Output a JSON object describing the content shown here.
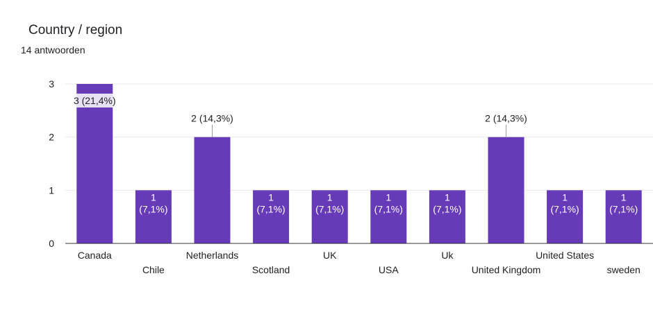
{
  "header": {
    "title": "Country / region",
    "response_count": "14 antwoorden"
  },
  "chart_data": {
    "type": "bar",
    "categories": [
      "Canada",
      "Chile",
      "Netherlands",
      "Scotland",
      "UK",
      "USA",
      "Uk",
      "United Kingdom",
      "United States",
      "sweden"
    ],
    "values": [
      3,
      1,
      2,
      1,
      1,
      1,
      1,
      2,
      1,
      1
    ],
    "data_labels": [
      "3 (21,4%)",
      "1 (7,1%)",
      "2 (14,3%)",
      "1 (7,1%)",
      "1 (7,1%)",
      "1 (7,1%)",
      "1 (7,1%)",
      "2 (14,3%)",
      "1 (7,1%)",
      "1 (7,1%)"
    ],
    "yticks": [
      0,
      1,
      2,
      3
    ],
    "ylim": [
      0,
      3
    ],
    "grid": true,
    "legend": "none",
    "bar_color": "#673ab7"
  }
}
